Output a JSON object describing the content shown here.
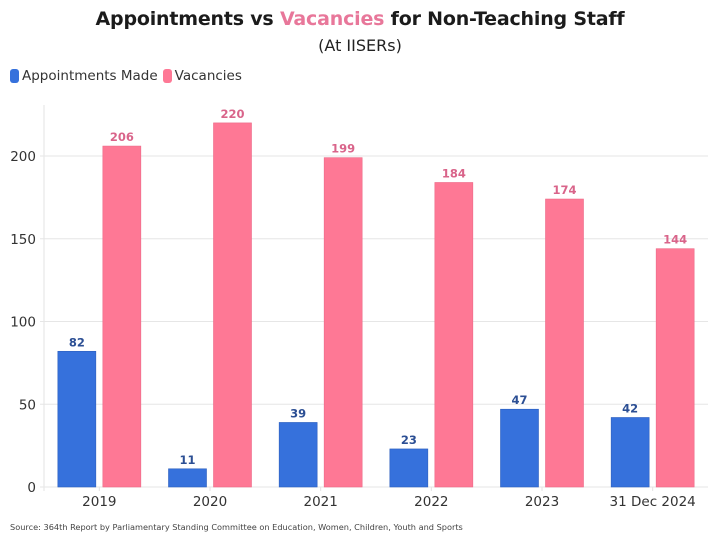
{
  "chart_data": {
    "type": "bar",
    "title_parts": [
      "Appointments vs ",
      "Vacancies",
      " for Non-Teaching Staff"
    ],
    "title": "Appointments vs Vacancies for Non-Teaching Staff",
    "subtitle": "(At IISERs)",
    "xlabel": "",
    "ylabel": "",
    "categories": [
      "2019",
      "2020",
      "2021",
      "2022",
      "2023",
      "31 Dec 2024"
    ],
    "series": [
      {
        "name": "Appointments Made",
        "color": "#3671dc",
        "label_color": "#2c4f94",
        "values": [
          82,
          11,
          39,
          23,
          47,
          42
        ]
      },
      {
        "name": "Vacancies",
        "color": "#fe7895",
        "label_color": "#d9648a",
        "values": [
          206,
          220,
          199,
          184,
          174,
          144
        ]
      }
    ],
    "ylim": [
      0,
      230
    ],
    "yticks": [
      0,
      50,
      100,
      150,
      200
    ],
    "grid": true,
    "legend_position": "top-left",
    "data_labels": true
  },
  "source": "Source: 364th Report by Parliamentary Standing Committee on Education, Women, Children, Youth and Sports"
}
